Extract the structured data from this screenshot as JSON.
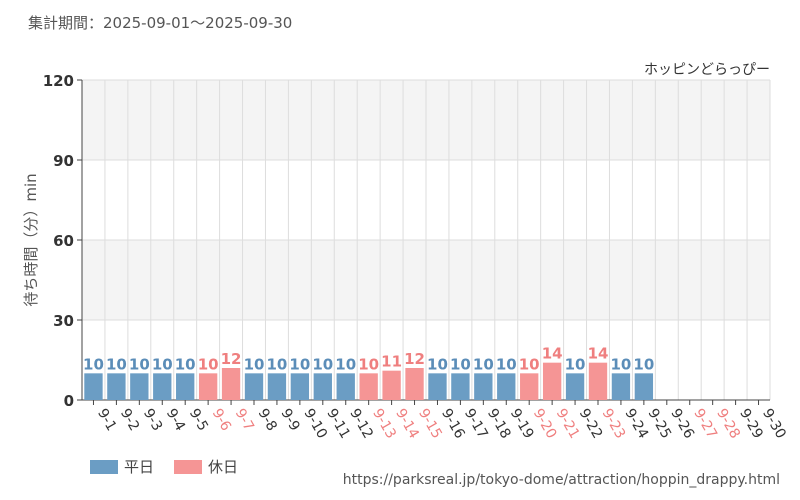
{
  "header": {
    "period_label": "集計期間：2025-09-01～2025-09-30"
  },
  "footer": {
    "source_url": "https://parksreal.jp/tokyo-dome/attraction/hoppin_drappy.html"
  },
  "colors": {
    "weekday": "#6b9dc4",
    "holiday": "#f59595",
    "weekday_text": "#5b8db8",
    "holiday_text": "#ef7f7f",
    "band": "#f4f4f4",
    "grid": "#dddddd",
    "axis": "#444444"
  },
  "chart_data": {
    "type": "bar",
    "title": "ホッピンどらっぴー",
    "ylabel": "待ち時間（分）min",
    "xlabel": "",
    "ylim": [
      0,
      120
    ],
    "yticks": [
      0,
      30,
      60,
      90,
      120
    ],
    "grid": true,
    "legend_position": "bottom-left",
    "legend": [
      {
        "key": "weekday",
        "label": "平日"
      },
      {
        "key": "holiday",
        "label": "休日"
      }
    ],
    "categories": [
      "9-1",
      "9-2",
      "9-3",
      "9-4",
      "9-5",
      "9-6",
      "9-7",
      "9-8",
      "9-9",
      "9-10",
      "9-11",
      "9-12",
      "9-13",
      "9-14",
      "9-15",
      "9-16",
      "9-17",
      "9-18",
      "9-19",
      "9-20",
      "9-21",
      "9-22",
      "9-23",
      "9-24",
      "9-25",
      "9-26",
      "9-27",
      "9-28",
      "9-29",
      "9-30"
    ],
    "day_type": [
      "weekday",
      "weekday",
      "weekday",
      "weekday",
      "weekday",
      "holiday",
      "holiday",
      "weekday",
      "weekday",
      "weekday",
      "weekday",
      "weekday",
      "holiday",
      "holiday",
      "holiday",
      "weekday",
      "weekday",
      "weekday",
      "weekday",
      "holiday",
      "holiday",
      "weekday",
      "holiday",
      "weekday",
      "weekday",
      "weekday",
      "holiday",
      "holiday",
      "weekday",
      "weekday"
    ],
    "values": [
      10,
      10,
      10,
      10,
      10,
      10,
      12,
      10,
      10,
      10,
      10,
      10,
      10,
      11,
      12,
      10,
      10,
      10,
      10,
      10,
      14,
      10,
      14,
      10,
      10,
      null,
      null,
      null,
      null,
      null
    ]
  }
}
